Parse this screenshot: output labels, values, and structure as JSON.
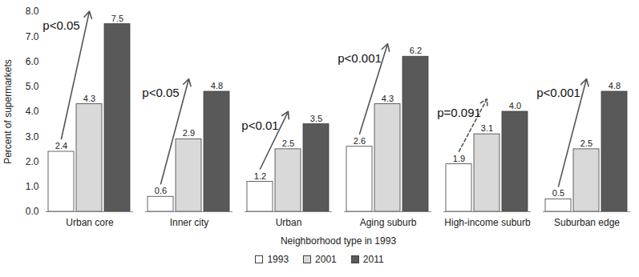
{
  "chart_data": {
    "type": "bar",
    "x_label": "Neighborhood type in 1993",
    "y_label": "Percent of supermarkets",
    "categories": [
      "Urban core",
      "Inner city",
      "Urban",
      "Aging suburb",
      "High-income suburb",
      "Suburban edge"
    ],
    "series": [
      {
        "name": "1993",
        "color": "#ffffff",
        "values": [
          2.4,
          0.6,
          1.2,
          2.6,
          1.9,
          0.5
        ],
        "value_labels": [
          "2.4",
          "0.6",
          "1.2",
          "2.6",
          "1.9",
          "0.5"
        ]
      },
      {
        "name": "2001",
        "color": "#d9d9d9",
        "values": [
          4.3,
          2.9,
          2.5,
          4.3,
          3.1,
          2.5
        ],
        "value_labels": [
          "4.3",
          "2.9",
          "2.5",
          "4.3",
          "3.1",
          "2.5"
        ]
      },
      {
        "name": "2011",
        "color": "#595959",
        "values": [
          7.5,
          4.8,
          3.5,
          6.2,
          4.0,
          4.8
        ],
        "value_labels": [
          "7.5",
          "4.8",
          "3.5",
          "6.2",
          "4.0",
          "4.8"
        ]
      }
    ],
    "ylim": [
      0,
      8
    ],
    "yticks": [
      {
        "value": 0,
        "label": "0.0"
      },
      {
        "value": 1,
        "label": "1.0"
      },
      {
        "value": 2,
        "label": "2.0"
      },
      {
        "value": 3,
        "label": "3.0"
      },
      {
        "value": 4,
        "label": "4.0"
      },
      {
        "value": 5,
        "label": "5.0"
      },
      {
        "value": 6,
        "label": "6.0"
      },
      {
        "value": 7,
        "label": "7.0"
      },
      {
        "value": 8,
        "label": "8.0"
      }
    ],
    "data_labels": true,
    "legend": "bottom",
    "annotations": [
      {
        "category": "Urban core",
        "text": "p<0.05",
        "line_style": "solid"
      },
      {
        "category": "Inner city",
        "text": "p<0.05",
        "line_style": "solid"
      },
      {
        "category": "Urban",
        "text": "p<0.01",
        "line_style": "solid"
      },
      {
        "category": "Aging suburb",
        "text": "p<0.001",
        "line_style": "solid"
      },
      {
        "category": "High-income suburb",
        "text": "p=0.091",
        "line_style": "dashed"
      },
      {
        "category": "Suburban edge",
        "text": "p<0.001",
        "line_style": "solid"
      }
    ]
  }
}
